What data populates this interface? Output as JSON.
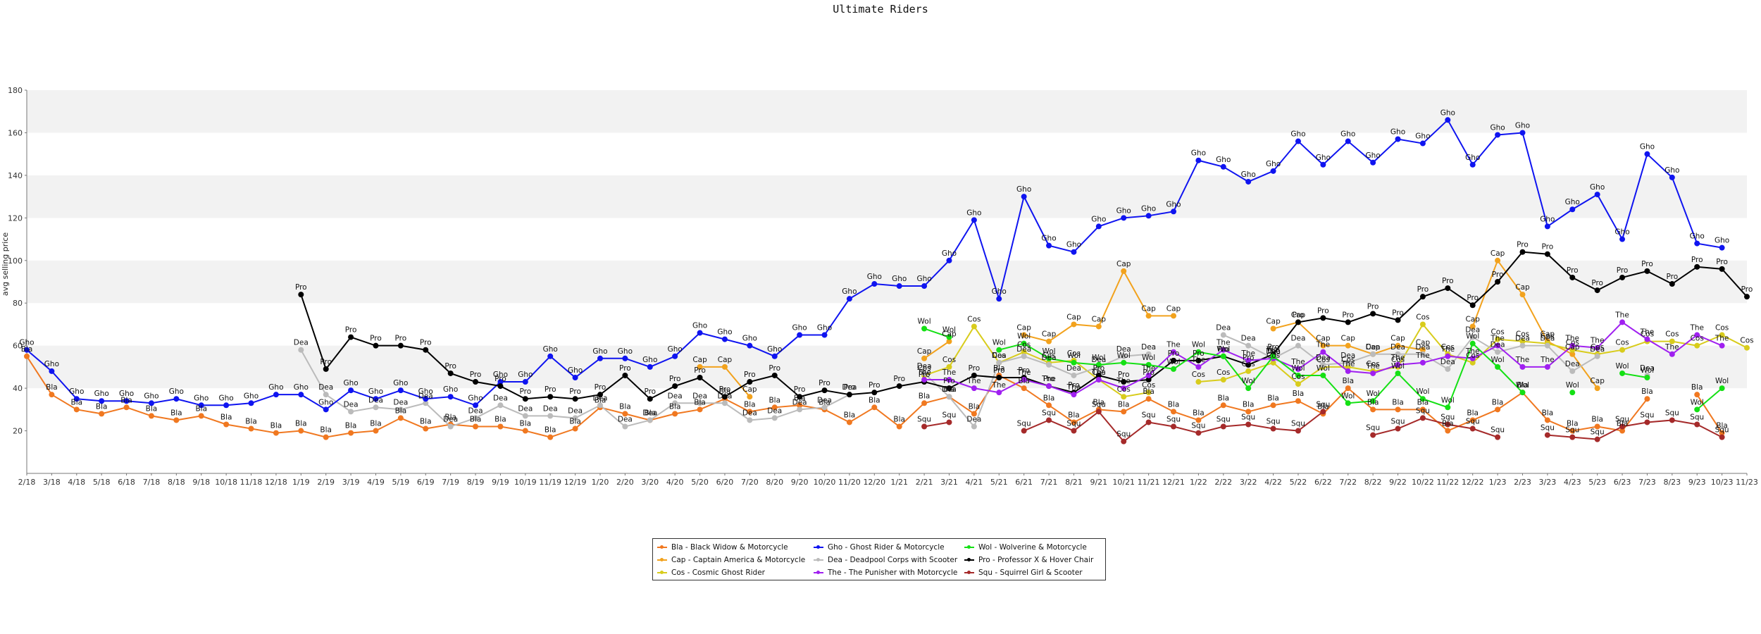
{
  "chart_data": {
    "type": "line",
    "title": "Ultimate Riders",
    "xlabel": "",
    "ylabel": "avg selling price",
    "ylim": [
      0,
      180
    ],
    "yticks": [
      20,
      40,
      60,
      80,
      100,
      120,
      140,
      160,
      180
    ],
    "grid": "alternating horizontal bands",
    "legend_position": "bottom-center",
    "categories": [
      "2/18",
      "3/18",
      "4/18",
      "5/18",
      "6/18",
      "7/18",
      "8/18",
      "9/18",
      "10/18",
      "11/18",
      "12/18",
      "1/19",
      "2/19",
      "3/19",
      "4/19",
      "5/19",
      "6/19",
      "7/19",
      "8/19",
      "9/19",
      "10/19",
      "11/19",
      "12/19",
      "1/20",
      "2/20",
      "3/20",
      "4/20",
      "5/20",
      "6/20",
      "7/20",
      "8/20",
      "9/20",
      "10/20",
      "11/20",
      "12/20",
      "1/21",
      "2/21",
      "3/21",
      "4/21",
      "5/21",
      "6/21",
      "7/21",
      "8/21",
      "9/21",
      "10/21",
      "11/21",
      "12/21",
      "1/22",
      "2/22",
      "3/22",
      "4/22",
      "5/22",
      "6/22",
      "7/22",
      "8/22",
      "9/22",
      "10/22",
      "11/22",
      "12/22",
      "1/23",
      "2/23",
      "3/23",
      "4/23",
      "5/23",
      "6/23",
      "7/23",
      "8/23",
      "9/23",
      "10/23",
      "11/23"
    ],
    "series": [
      {
        "code": "Bla",
        "name": "Bla - Black Widow & Motorcycle",
        "color": "#f07820",
        "values": [
          55,
          37,
          30,
          28,
          31,
          27,
          25,
          27,
          23,
          21,
          19,
          20,
          17,
          19,
          20,
          26,
          21,
          23,
          22,
          22,
          20,
          17,
          21,
          31,
          28,
          25,
          28,
          30,
          35,
          29,
          31,
          32,
          30,
          24,
          31,
          22,
          33,
          36,
          28,
          46,
          40,
          32,
          24,
          30,
          29,
          35,
          29,
          25,
          32,
          29,
          32,
          34,
          28,
          40,
          30,
          30,
          30,
          20,
          25,
          30,
          38,
          25,
          20,
          22,
          20,
          35,
          null,
          37,
          19,
          null
        ]
      },
      {
        "code": "Cap",
        "name": "Cap - Captain America & Motorcycle",
        "color": "#f2a21d",
        "values": [
          null,
          null,
          null,
          null,
          null,
          null,
          null,
          null,
          null,
          null,
          null,
          null,
          null,
          null,
          null,
          null,
          null,
          null,
          null,
          null,
          null,
          null,
          null,
          null,
          null,
          null,
          null,
          50,
          50,
          36,
          null,
          null,
          null,
          null,
          null,
          null,
          54,
          62,
          null,
          null,
          65,
          62,
          70,
          69,
          95,
          74,
          74,
          null,
          null,
          null,
          68,
          71,
          60,
          60,
          56,
          60,
          58,
          null,
          69,
          100,
          84,
          62,
          56,
          40,
          null,
          null,
          null,
          null,
          null,
          null
        ]
      },
      {
        "code": "Cos",
        "name": "Cos - Cosmic Ghost Rider",
        "color": "#d8cc1c",
        "values": [
          null,
          null,
          null,
          null,
          null,
          null,
          null,
          null,
          null,
          null,
          null,
          null,
          null,
          null,
          null,
          null,
          null,
          null,
          null,
          null,
          null,
          null,
          null,
          null,
          null,
          null,
          null,
          null,
          null,
          null,
          null,
          null,
          null,
          null,
          null,
          null,
          46,
          50,
          69,
          52,
          57,
          52,
          53,
          44,
          36,
          38,
          null,
          43,
          44,
          48,
          52,
          42,
          50,
          50,
          48,
          50,
          70,
          56,
          52,
          63,
          62,
          61,
          58,
          56,
          58,
          62,
          62,
          60,
          65,
          59
        ]
      },
      {
        "code": "Dea",
        "name": "Dea - Deadpool Corps with Scooter",
        "color": "#bbbbbb",
        "values": [
          null,
          null,
          null,
          null,
          null,
          null,
          null,
          null,
          null,
          null,
          null,
          58,
          37,
          29,
          31,
          30,
          33,
          22,
          26,
          32,
          27,
          27,
          26,
          32,
          22,
          25,
          33,
          33,
          33,
          25,
          26,
          30,
          31,
          37,
          null,
          null,
          47,
          36,
          22,
          52,
          55,
          51,
          46,
          50,
          55,
          56,
          null,
          null,
          65,
          60,
          54,
          60,
          51,
          52,
          56,
          56,
          56,
          49,
          64,
          57,
          60,
          60,
          48,
          55,
          null,
          46,
          null,
          null,
          null,
          null
        ]
      },
      {
        "code": "Gho",
        "name": "Gho - Ghost Rider & Motorcycle",
        "color": "#0f14f0",
        "values": [
          58,
          48,
          35,
          34,
          34,
          33,
          35,
          32,
          32,
          33,
          37,
          37,
          30,
          39,
          35,
          39,
          35,
          36,
          32,
          43,
          43,
          55,
          45,
          54,
          54,
          50,
          55,
          66,
          63,
          60,
          55,
          65,
          65,
          82,
          89,
          88,
          88,
          100,
          119,
          82,
          130,
          107,
          104,
          116,
          120,
          121,
          123,
          147,
          144,
          137,
          142,
          156,
          145,
          156,
          146,
          157,
          155,
          166,
          145,
          159,
          160,
          116,
          124,
          131,
          110,
          150,
          139,
          108,
          106,
          null
        ]
      },
      {
        "code": "Pro",
        "name": "Pro - Professor X & Hover Chair",
        "color": "#000000",
        "values": [
          null,
          null,
          null,
          null,
          null,
          null,
          null,
          null,
          null,
          null,
          null,
          84,
          49,
          64,
          60,
          60,
          58,
          47,
          43,
          41,
          35,
          36,
          35,
          37,
          46,
          35,
          41,
          45,
          36,
          43,
          46,
          36,
          39,
          37,
          38,
          41,
          43,
          40,
          46,
          45,
          45,
          41,
          38,
          46,
          43,
          44,
          53,
          53,
          55,
          51,
          56,
          71,
          73,
          71,
          75,
          72,
          83,
          87,
          79,
          90,
          104,
          103,
          92,
          86,
          92,
          95,
          89,
          97,
          96,
          83
        ]
      },
      {
        "code": "Squ",
        "name": "Squ - Squirrel Girl & Scooter",
        "color": "#a52a2a",
        "values": [
          null,
          null,
          null,
          null,
          null,
          null,
          null,
          null,
          null,
          null,
          null,
          null,
          null,
          null,
          null,
          null,
          null,
          null,
          null,
          null,
          null,
          null,
          null,
          null,
          null,
          null,
          null,
          null,
          null,
          null,
          null,
          null,
          null,
          null,
          null,
          null,
          22,
          24,
          null,
          null,
          20,
          25,
          20,
          29,
          15,
          24,
          22,
          19,
          22,
          23,
          21,
          20,
          29,
          null,
          18,
          21,
          26,
          23,
          21,
          17,
          null,
          18,
          17,
          16,
          22,
          24,
          25,
          23,
          17,
          null
        ]
      },
      {
        "code": "The",
        "name": "The - The Punisher with Motorcycle",
        "color": "#a020f0",
        "values": [
          null,
          null,
          null,
          null,
          null,
          null,
          null,
          null,
          null,
          null,
          null,
          null,
          null,
          null,
          null,
          null,
          null,
          null,
          null,
          null,
          null,
          null,
          null,
          null,
          null,
          null,
          null,
          null,
          null,
          null,
          null,
          null,
          null,
          null,
          null,
          null,
          44,
          44,
          40,
          38,
          44,
          41,
          37,
          44,
          40,
          46,
          57,
          50,
          58,
          53,
          54,
          49,
          57,
          48,
          47,
          51,
          52,
          55,
          54,
          60,
          50,
          50,
          60,
          59,
          71,
          63,
          56,
          65,
          60,
          null
        ]
      },
      {
        "code": "Wol",
        "name": "Wol - Wolverine & Motorcycle",
        "color": "#14e014",
        "values": [
          null,
          null,
          null,
          null,
          null,
          null,
          null,
          null,
          null,
          null,
          null,
          null,
          null,
          null,
          null,
          null,
          null,
          null,
          null,
          null,
          null,
          null,
          null,
          null,
          null,
          null,
          null,
          null,
          null,
          null,
          null,
          null,
          null,
          null,
          null,
          null,
          68,
          64,
          null,
          58,
          61,
          54,
          52,
          51,
          52,
          51,
          49,
          57,
          55,
          40,
          55,
          46,
          46,
          33,
          34,
          47,
          35,
          31,
          61,
          50,
          38,
          null,
          38,
          null,
          47,
          45,
          null,
          30,
          40,
          null
        ]
      }
    ]
  }
}
